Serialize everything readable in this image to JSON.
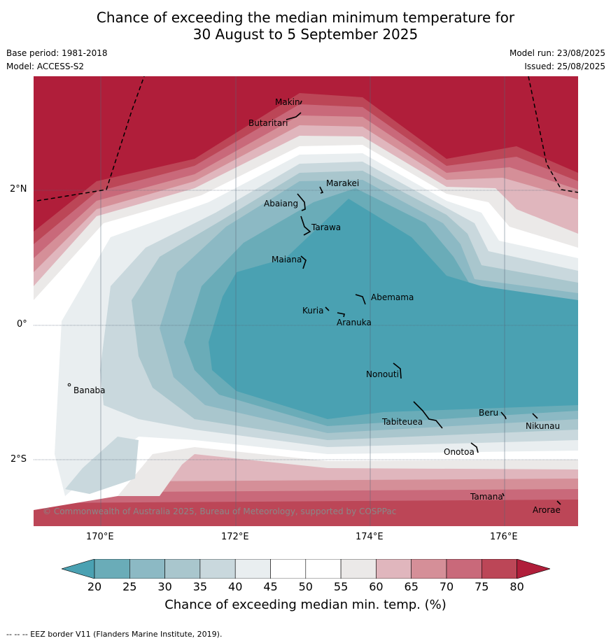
{
  "title_line1": "Chance of exceeding the median minimum temperature for",
  "title_line2": "30 August to 5 September 2025",
  "base_period": "Base period: 1981-2018",
  "model": "Model: ACCESS-S2",
  "model_run": "Model run: 23/08/2025",
  "issued": "Issued: 25/08/2025",
  "lat_labels": [
    "2°N",
    "0°",
    "2°S"
  ],
  "lon_labels": [
    "170°E",
    "172°E",
    "174°E",
    "176°E"
  ],
  "islands": [
    "Makin",
    "Butaritari",
    "Marakei",
    "Abaiang",
    "Tarawa",
    "Maiana",
    "Abemama",
    "Kuria",
    "Aranuka",
    "Nonouti",
    "Banaba",
    "Beru",
    "Tabiteuea",
    "Nikunau",
    "Onotoa",
    "Tamana",
    "Arorae"
  ],
  "copyright": "© Commonwealth of Australia 2025, Bureau of Meteorology, supported by COSPPac",
  "colorbar": {
    "ticks": [
      "20",
      "25",
      "30",
      "35",
      "40",
      "45",
      "50",
      "55",
      "60",
      "65",
      "70",
      "75",
      "80"
    ],
    "colors": [
      "#6aacb8",
      "#8cb9c4",
      "#a9c6cd",
      "#c9d8dd",
      "#e9eef0",
      "#ffffff",
      "#ffffff",
      "#ebe9e8",
      "#e0b6bd",
      "#d58f98",
      "#c9697a",
      "#bc4657",
      "#b01e3a"
    ],
    "under_color": "#4aa1b2",
    "over_color": "#b01e3a",
    "label": "Chance of exceeding median min. temp. (%)"
  },
  "footer": "--  --  -- EEZ border V11 (Flanders Marine Institute, 2019)."
}
